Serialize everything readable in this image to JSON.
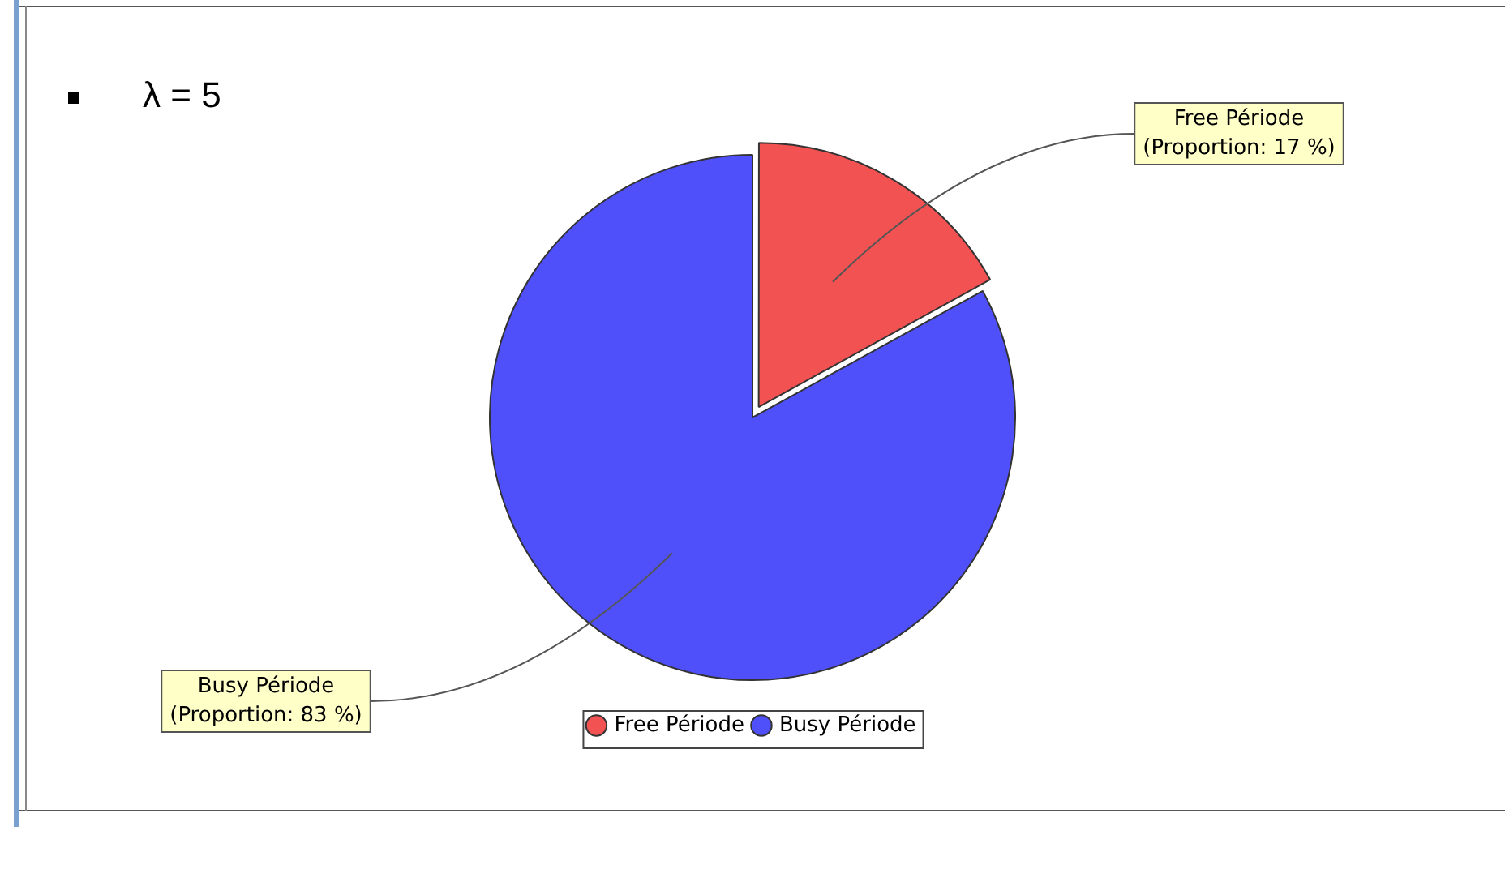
{
  "chart_data": {
    "type": "pie",
    "title": "λ = 5",
    "categories": [
      "Free Période",
      "Busy Période"
    ],
    "values": [
      17,
      83
    ],
    "colors": [
      "#f25252",
      "#5050fa"
    ],
    "value_labels": [
      "(Proportion: 17 %)",
      "(Proportion: 83 %)"
    ],
    "legend": "bottom"
  }
}
